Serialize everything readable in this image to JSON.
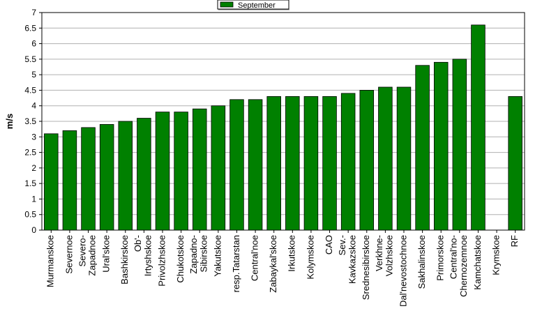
{
  "chart_data": {
    "type": "bar",
    "y_label": "m/s",
    "categories": [
      "Murmanskoe",
      "Severnoe",
      "Severo-\nZapadnoe",
      "Ural'skoe",
      "Bashkirskoe",
      "Ob'-\nIrtyshskoe",
      "Privolzhskoe",
      "Chukotskoe",
      "Zapadno-\nSibirskoe",
      "Yakutskoe",
      "resp.Tatarstan",
      "Central'noe",
      "Zabaykal'skoe",
      "Irkutskoe",
      "Kolymskoe",
      "CAO",
      "Sev.-\nKavkazskoe",
      "Srednesibirskoe",
      "Verkhne-\nVolzhskoe",
      "Dal'nevostochnoe",
      "Sakhalinskoe",
      "Primorskoe",
      "Central'no-\nChernozemnoe",
      "Kamchatskoe",
      "Krymskoe",
      "RF"
    ],
    "series": [
      {
        "name": "September",
        "color": "#008000",
        "values": [
          3.1,
          3.2,
          3.3,
          3.4,
          3.5,
          3.6,
          3.8,
          3.8,
          3.9,
          4.0,
          4.2,
          4.2,
          4.3,
          4.3,
          4.3,
          4.3,
          4.4,
          4.5,
          4.6,
          4.6,
          5.3,
          5.4,
          5.5,
          6.6,
          null,
          4.3
        ]
      }
    ],
    "ylim": [
      0,
      7
    ],
    "yticks": [
      0,
      0.5,
      1,
      1.5,
      2,
      2.5,
      3,
      3.5,
      4,
      4.5,
      5,
      5.5,
      6,
      6.5,
      7
    ],
    "grid": true
  }
}
